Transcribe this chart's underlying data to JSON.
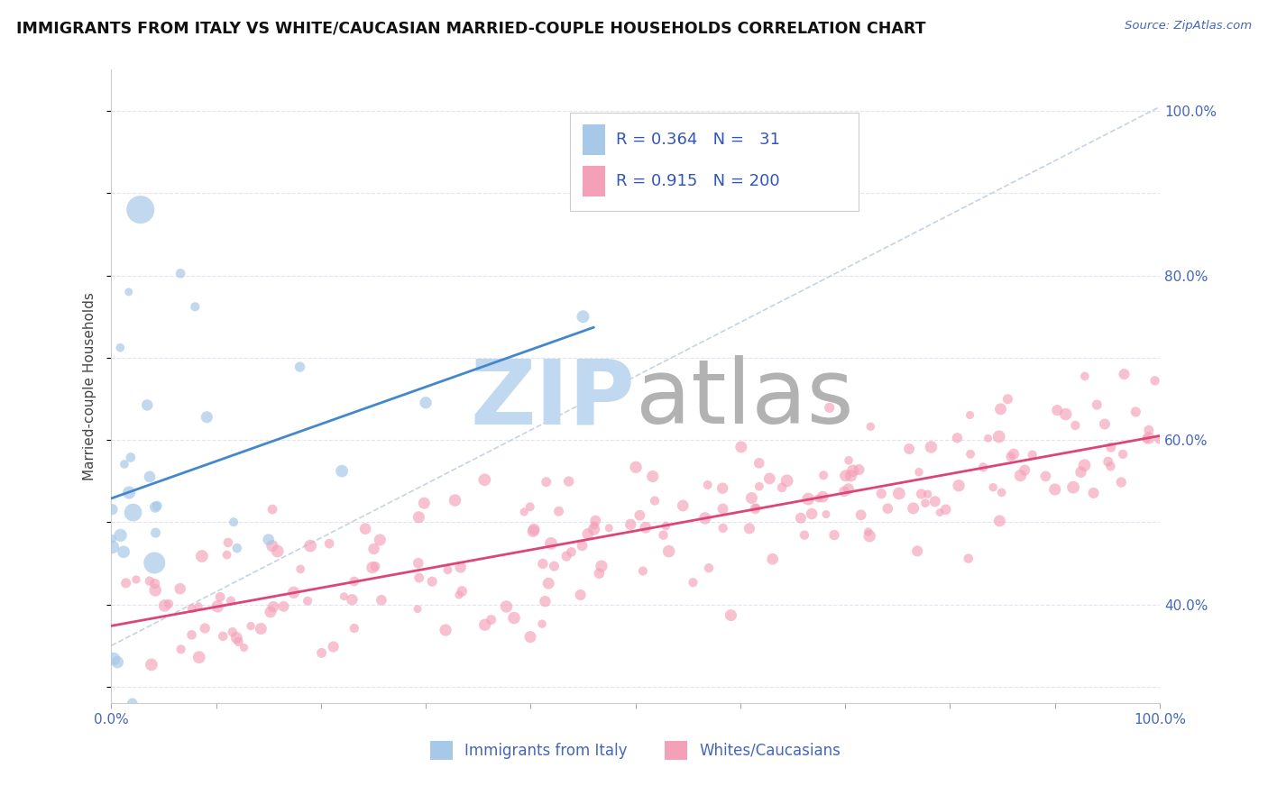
{
  "title": "IMMIGRANTS FROM ITALY VS WHITE/CAUCASIAN MARRIED-COUPLE HOUSEHOLDS CORRELATION CHART",
  "source": "Source: ZipAtlas.com",
  "ylabel": "Married-couple Households",
  "legend_label1": "Immigrants from Italy",
  "legend_label2": "Whites/Caucasians",
  "R1": 0.364,
  "N1": 31,
  "R2": 0.915,
  "N2": 200,
  "color1": "#A8C8E8",
  "color2": "#F4A0B8",
  "line_color1": "#4488CC",
  "line_color2": "#DD4477",
  "ref_line_color": "#BBCCDD",
  "grid_color": "#DDDDEE",
  "watermark_zip_color": "#C0D8F0",
  "watermark_atlas_color": "#AAAAAA",
  "xlim": [
    0,
    100
  ],
  "ylim": [
    28,
    105
  ],
  "yticks": [
    40,
    60,
    80,
    100
  ],
  "xticks": [
    0,
    10,
    20,
    30,
    40,
    50,
    60,
    70,
    80,
    90,
    100
  ],
  "xtick_labels_show": [
    0,
    100
  ],
  "seed": 99
}
